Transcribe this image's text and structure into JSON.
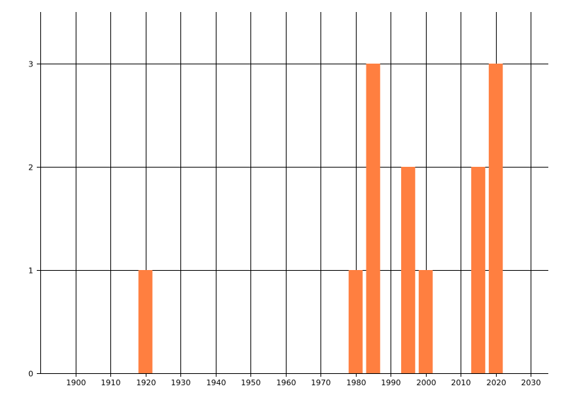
{
  "chart_data": {
    "type": "bar",
    "title": "",
    "xlabel": "",
    "ylabel": "",
    "x": [
      1920,
      1980,
      1985,
      1995,
      2000,
      2015,
      2020
    ],
    "values": [
      1,
      1,
      3,
      2,
      1,
      2,
      3
    ],
    "bar_width_years": 4,
    "xlim": [
      1890,
      2035
    ],
    "ylim": [
      0,
      3.5
    ],
    "x_ticks": [
      1900,
      1910,
      1920,
      1930,
      1940,
      1950,
      1960,
      1970,
      1980,
      1990,
      2000,
      2010,
      2020,
      2030
    ],
    "y_ticks": [
      0,
      1,
      2,
      3
    ],
    "grid": true,
    "legend": "none",
    "colors": {
      "bar": "#FF7F40",
      "grid": "#000000"
    }
  }
}
